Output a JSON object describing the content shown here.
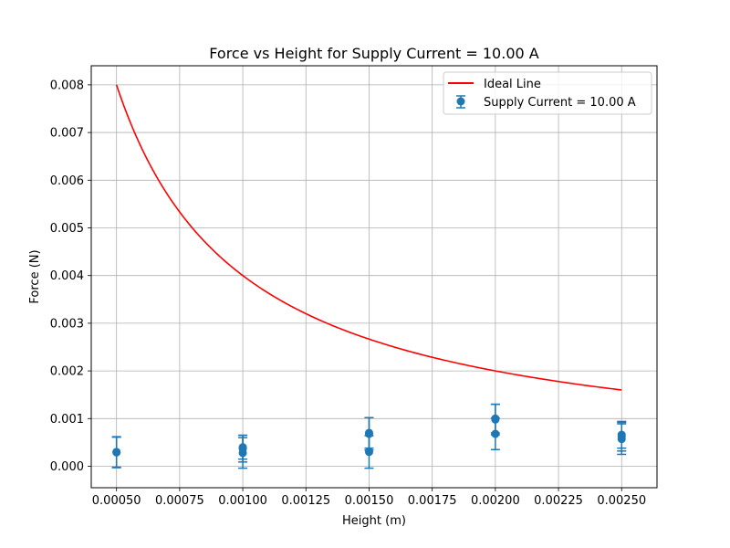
{
  "chart_data": {
    "type": "scatter",
    "title": "Force vs Height for Supply Current = 10.00 A",
    "xlabel": "Height (m)",
    "ylabel": "Force (N)",
    "xlim": [
      0.0004,
      0.00264
    ],
    "ylim": [
      -0.00045,
      0.0084
    ],
    "grid": true,
    "legend_position": "top-right",
    "x_ticks": [
      "0.00050",
      "0.00075",
      "0.00100",
      "0.00125",
      "0.00150",
      "0.00175",
      "0.00200",
      "0.00225",
      "0.00250"
    ],
    "x_tick_values": [
      0.0005,
      0.00075,
      0.001,
      0.00125,
      0.0015,
      0.00175,
      0.002,
      0.00225,
      0.0025
    ],
    "y_ticks": [
      "0.000",
      "0.001",
      "0.002",
      "0.003",
      "0.004",
      "0.005",
      "0.006",
      "0.007",
      "0.008"
    ],
    "y_tick_values": [
      0,
      0.001,
      0.002,
      0.003,
      0.004,
      0.005,
      0.006,
      0.007,
      0.008
    ],
    "series": [
      {
        "name": "Ideal Line",
        "kind": "line",
        "color": "#ff0000",
        "formula": "F = 4e-6 / h",
        "x_range": [
          0.0005,
          0.0025
        ]
      },
      {
        "name": "Supply Current = 10.00 A",
        "kind": "errorbar",
        "color": "#1f77b4",
        "points": [
          {
            "x": 0.0005,
            "y": 0.00029,
            "err": 0.00032
          },
          {
            "x": 0.0005,
            "y": 0.0003,
            "err": 0.00032
          },
          {
            "x": 0.001,
            "y": 0.00028,
            "err": 0.00032
          },
          {
            "x": 0.001,
            "y": 0.00037,
            "err": 0.00028
          },
          {
            "x": 0.001,
            "y": 0.0004,
            "err": 0.00025
          },
          {
            "x": 0.0015,
            "y": 0.0003,
            "err": 0.00034
          },
          {
            "x": 0.0015,
            "y": 0.00068,
            "err": 0.00034
          },
          {
            "x": 0.0015,
            "y": 0.0007,
            "err": 0.00032
          },
          {
            "x": 0.002,
            "y": 0.00068,
            "err": 0.00033
          },
          {
            "x": 0.002,
            "y": 0.00098,
            "err": 0.00032
          },
          {
            "x": 0.002,
            "y": 0.001,
            "err": 0.0003
          },
          {
            "x": 0.0025,
            "y": 0.00057,
            "err": 0.00032
          },
          {
            "x": 0.0025,
            "y": 0.00062,
            "err": 0.0003
          },
          {
            "x": 0.0025,
            "y": 0.00066,
            "err": 0.00028
          }
        ]
      }
    ]
  }
}
